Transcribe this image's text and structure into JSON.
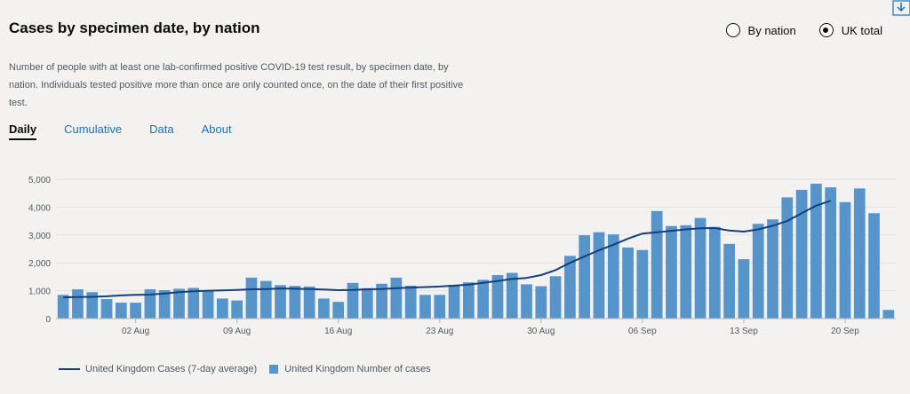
{
  "header": {
    "title": "Cases by specimen date, by nation"
  },
  "description": "Number of people with at least one lab-confirmed positive COVID-19 test result, by specimen date, by nation. Individuals tested positive more than once are only counted once, on the date of their first positive test.",
  "view_options": [
    {
      "label": "By nation",
      "selected": false
    },
    {
      "label": "UK total",
      "selected": true
    }
  ],
  "tabs": [
    {
      "label": "Daily",
      "active": true
    },
    {
      "label": "Cumulative",
      "active": false
    },
    {
      "label": "Data",
      "active": false
    },
    {
      "label": "About",
      "active": false
    }
  ],
  "colors": {
    "bar": "#5694ca",
    "line": "#12407f",
    "link": "#1d70b8"
  },
  "legend": {
    "line_label": "United Kingdom Cases (7-day average)",
    "bar_label": "United Kingdom Number of cases"
  },
  "chart_data": {
    "type": "bar",
    "title": "Cases by specimen date, by nation",
    "xlabel": "",
    "ylabel": "",
    "ylim": [
      0,
      5000
    ],
    "yticks": [
      "0",
      "1,000",
      "2,000",
      "3,000",
      "4,000",
      "5,000"
    ],
    "xticks": [
      {
        "index": 5,
        "label": "02 Aug"
      },
      {
        "index": 12,
        "label": "09 Aug"
      },
      {
        "index": 19,
        "label": "16 Aug"
      },
      {
        "index": 26,
        "label": "23 Aug"
      },
      {
        "index": 33,
        "label": "30 Aug"
      },
      {
        "index": 40,
        "label": "06 Sep"
      },
      {
        "index": 47,
        "label": "13 Sep"
      },
      {
        "index": 54,
        "label": "20 Sep"
      }
    ],
    "series": [
      {
        "name": "United Kingdom Number of cases",
        "type": "bar",
        "values": [
          850,
          1050,
          950,
          700,
          570,
          570,
          1050,
          1020,
          1070,
          1100,
          1000,
          720,
          650,
          1470,
          1350,
          1200,
          1170,
          1150,
          720,
          600,
          1280,
          1090,
          1250,
          1470,
          1180,
          850,
          850,
          1200,
          1300,
          1390,
          1560,
          1640,
          1230,
          1160,
          1520,
          2250,
          2990,
          3100,
          3020,
          2550,
          2460,
          3860,
          3320,
          3350,
          3610,
          3290,
          2680,
          2130,
          3400,
          3560,
          4350,
          4620,
          4840,
          4710,
          4180,
          4670,
          3780,
          310
        ]
      },
      {
        "name": "United Kingdom Cases (7-day average)",
        "type": "line",
        "values": [
          760,
          770,
          780,
          800,
          830,
          850,
          860,
          900,
          950,
          980,
          1000,
          1010,
          1030,
          1050,
          1060,
          1080,
          1070,
          1060,
          1040,
          1020,
          1030,
          1050,
          1060,
          1090,
          1110,
          1130,
          1150,
          1180,
          1220,
          1280,
          1350,
          1420,
          1460,
          1560,
          1740,
          2000,
          2230,
          2450,
          2650,
          2870,
          3050,
          3100,
          3150,
          3200,
          3240,
          3250,
          3160,
          3120,
          3200,
          3330,
          3500,
          3780,
          4050,
          4230,
          null,
          null,
          null,
          null
        ]
      }
    ]
  }
}
